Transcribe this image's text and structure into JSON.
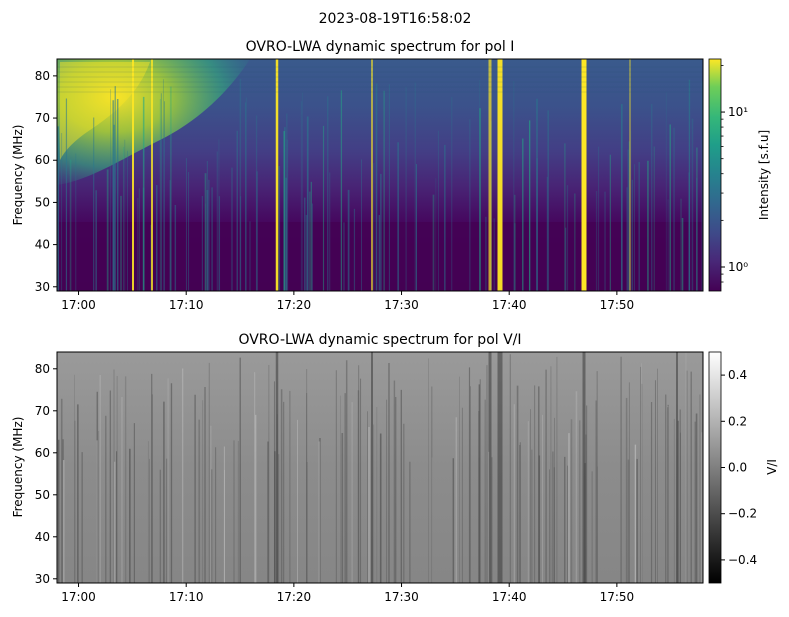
{
  "figure": {
    "suptitle": "2023-08-19T16:58:02"
  },
  "chart_data": [
    {
      "type": "heatmap",
      "title": "OVRO-LWA dynamic spectrum for pol I",
      "xlabel": "",
      "ylabel": "Frequency (MHz)",
      "x_range": [
        "16:58:02",
        "17:58:02"
      ],
      "ylim": [
        29,
        84
      ],
      "x_ticks": [
        "17:00",
        "17:10",
        "17:20",
        "17:30",
        "17:40",
        "17:50"
      ],
      "x_tick_minutes": [
        2,
        12,
        22,
        32,
        42,
        52
      ],
      "y_ticks": [
        "30",
        "40",
        "50",
        "60",
        "70",
        "80"
      ],
      "y_tick_values": [
        30,
        40,
        50,
        60,
        70,
        80
      ],
      "colormap": "viridis",
      "colorbar": {
        "label": "Intensity [s.f.u]",
        "scale": "log",
        "range": [
          0.7,
          22
        ],
        "tick_labels": [
          "10⁰",
          "10¹"
        ],
        "tick_values": [
          1,
          10
        ]
      }
    },
    {
      "type": "heatmap",
      "title": "OVRO-LWA dynamic spectrum for pol V/I",
      "xlabel": "",
      "ylabel": "Frequency (MHz)",
      "x_range": [
        "16:58:02",
        "17:58:02"
      ],
      "ylim": [
        29,
        84
      ],
      "x_ticks": [
        "17:00",
        "17:10",
        "17:20",
        "17:30",
        "17:40",
        "17:50"
      ],
      "x_tick_minutes": [
        2,
        12,
        22,
        32,
        42,
        52
      ],
      "y_ticks": [
        "30",
        "40",
        "50",
        "60",
        "70",
        "80"
      ],
      "y_tick_values": [
        30,
        40,
        50,
        60,
        70,
        80
      ],
      "colormap": "gray",
      "colorbar": {
        "label": "V/I",
        "scale": "linear",
        "range": [
          -0.5,
          0.5
        ],
        "tick_labels": [
          "−0.4",
          "−0.2",
          "0.0",
          "0.2",
          "0.4"
        ],
        "tick_values": [
          -0.4,
          -0.2,
          0.0,
          0.2,
          0.4
        ]
      }
    }
  ]
}
